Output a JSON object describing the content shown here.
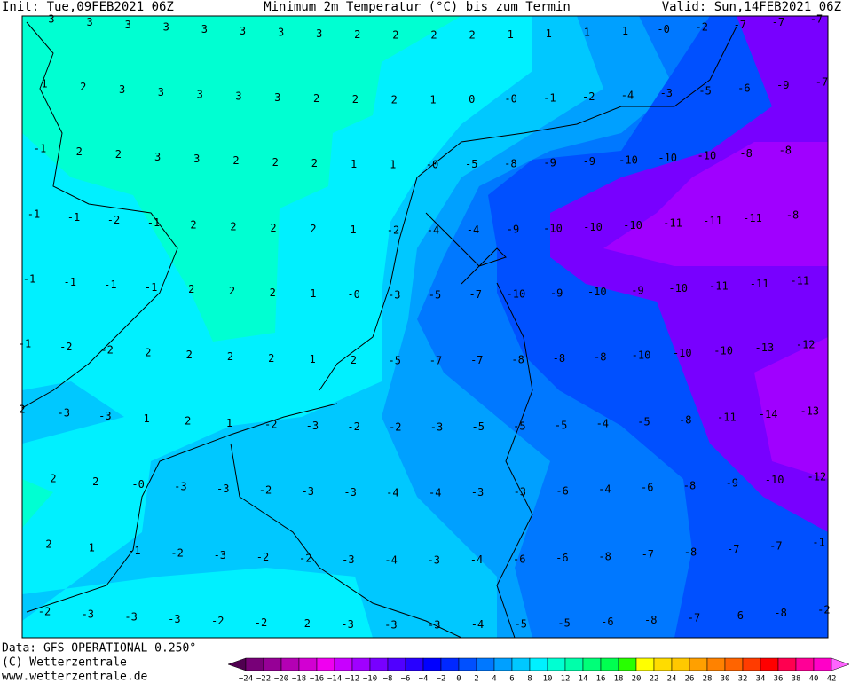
{
  "header": {
    "init": "Init: Tue,09FEB2021 06Z",
    "title": "Minimum 2m Temperatur (°C) bis zum Termin",
    "valid": "Valid: Sun,14FEB2021 06Z"
  },
  "map_labels": [
    [
      "3",
      "3",
      "3",
      "3",
      "3",
      "3",
      "3",
      "3",
      "2",
      "2",
      "2",
      "2",
      "1",
      "1",
      "1",
      "1",
      "-0",
      "-2",
      "-7",
      "-7",
      "-7"
    ],
    [
      "1",
      "2",
      "3",
      "3",
      "3",
      "3",
      "3",
      "2",
      "2",
      "2",
      "1",
      "0",
      "-0",
      "-1",
      "-2",
      "-4",
      "-3",
      "-5",
      "-6",
      "-9",
      "-7"
    ],
    [
      "-1",
      "2",
      "2",
      "3",
      "3",
      "2",
      "2",
      "2",
      "1",
      "1",
      "-0",
      "-5",
      "-8",
      "-9",
      "-9",
      "-10",
      "-10",
      "-10",
      "-8",
      "-8"
    ],
    [
      "-1",
      "-1",
      "-2",
      "-1",
      "2",
      "2",
      "2",
      "2",
      "1",
      "-2",
      "-4",
      "-4",
      "-9",
      "-10",
      "-10",
      "-10",
      "-11",
      "-11",
      "-11",
      "-8"
    ],
    [
      "-1",
      "-1",
      "-1",
      "-1",
      "2",
      "2",
      "2",
      "1",
      "-0",
      "-3",
      "-5",
      "-7",
      "-10",
      "-9",
      "-10",
      "-9",
      "-10",
      "-11",
      "-11",
      "-11"
    ],
    [
      "-1",
      "-2",
      "-2",
      "2",
      "2",
      "2",
      "2",
      "1",
      "2",
      "-5",
      "-7",
      "-7",
      "-8",
      "-8",
      "-8",
      "-10",
      "-10",
      "-10",
      "-13",
      "-12"
    ],
    [
      "2",
      "-3",
      "-3",
      "1",
      "2",
      "1",
      "-2",
      "-3",
      "-2",
      "-2",
      "-3",
      "-5",
      "-5",
      "-5",
      "-4",
      "-5",
      "-8",
      "-11",
      "-14",
      "-13"
    ],
    [
      "2",
      "2",
      "-0",
      "-3",
      "-3",
      "-2",
      "-3",
      "-3",
      "-4",
      "-4",
      "-3",
      "-3",
      "-6",
      "-4",
      "-6",
      "-8",
      "-9",
      "-10",
      "-12"
    ],
    [
      "2",
      "1",
      "-1",
      "-2",
      "-3",
      "-2",
      "-2",
      "-3",
      "-4",
      "-3",
      "-4",
      "-6",
      "-6",
      "-8",
      "-7",
      "-8",
      "-7",
      "-7",
      "-1"
    ],
    [
      "-2",
      "-3",
      "-3",
      "-3",
      "-2",
      "-2",
      "-2",
      "-3",
      "-3",
      "-3",
      "-4",
      "-5",
      "-5",
      "-6",
      "-8",
      "-7",
      "-6",
      "-8",
      "-2"
    ]
  ],
  "colorbar": {
    "labels": [
      "−24",
      "−22",
      "−20",
      "−18",
      "−16",
      "−14",
      "−12",
      "−10",
      "−8",
      "−6",
      "−4",
      "−2",
      "0",
      "2",
      "4",
      "6",
      "8",
      "10",
      "12",
      "14",
      "16",
      "18",
      "20",
      "22",
      "24",
      "26",
      "28",
      "30",
      "32",
      "34",
      "36",
      "38",
      "40",
      "42"
    ],
    "colors": [
      "#780078",
      "#960096",
      "#b400b4",
      "#d200d2",
      "#f000f0",
      "#c800ff",
      "#a000ff",
      "#7800ff",
      "#5000ff",
      "#2800ff",
      "#0000ff",
      "#0028ff",
      "#0050ff",
      "#0078ff",
      "#00a0ff",
      "#00c8ff",
      "#00f0ff",
      "#00ffd2",
      "#00ffaa",
      "#00ff78",
      "#00ff50",
      "#28ff00",
      "#ffff00",
      "#ffdc00",
      "#ffc800",
      "#ffa000",
      "#ff8200",
      "#ff6400",
      "#ff3c00",
      "#ff0000",
      "#ff0050",
      "#ff0096",
      "#ff00c8"
    ],
    "under_color": "#500050",
    "over_color": "#ff64ff"
  },
  "footer": {
    "data": "Data: GFS OPERATIONAL 0.250°",
    "copyright": "(C) Wetterzentrale",
    "url": "www.wetterzentrale.de"
  }
}
